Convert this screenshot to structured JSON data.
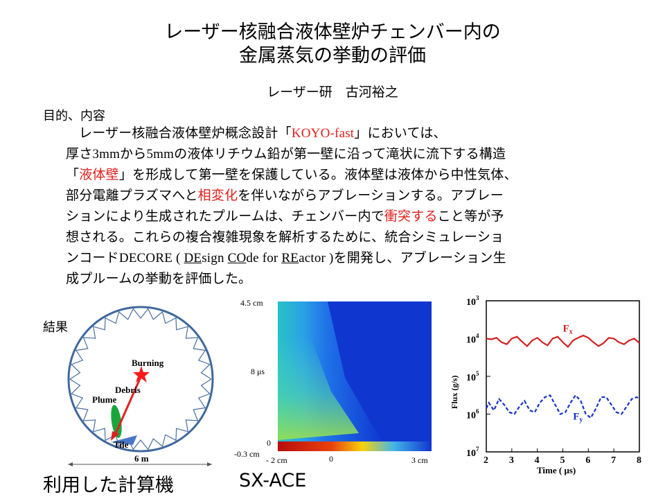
{
  "title": {
    "line1": "レーザー核融合液体壁炉チェンバー内の",
    "line2": "金属蒸気の挙動の評価"
  },
  "author": "レーザー研　古河裕之",
  "purpose": {
    "heading": "目的、内容",
    "lines": [
      [
        "レーザー核融合液体壁炉概念設計「",
        "KOYO-fast",
        "」においては、"
      ],
      [
        "厚さ",
        "3mm",
        "から",
        "5mm",
        "の液体リチウム鉛が第一壁に沿って滝状に流下する構造"
      ],
      [
        "「",
        "液体壁",
        "」を形成して第一壁を保護している。液体壁は液体から中性気体、"
      ],
      [
        "部分電離プラズマへと",
        "相変化",
        "を伴いながらアブレーションする。アブレー"
      ],
      [
        "ションにより生成されたプルームは、チェンバー内で",
        "衝突する",
        "こと等が予"
      ],
      [
        "想される。これらの複合複雑現象を解析するために、統合シミュレーショ"
      ],
      [
        "ンコード",
        "DECORE ( ",
        "DE",
        "sign ",
        "CO",
        "de for ",
        "RE",
        "actor )",
        "を開発し、アブレーション生"
      ],
      [
        "成プルームの挙動を評価した。"
      ]
    ]
  },
  "results": {
    "heading": "結果",
    "computer_label": "利用した計算機",
    "computer_name": "SX-ACE"
  },
  "diagram": {
    "burning": "Burning",
    "debris": "Debris",
    "plume": "Plume",
    "tile": "Tile",
    "width": "6 m"
  },
  "heatmap": {
    "y_top": "4.5 cm",
    "y_time": "8 μs",
    "y_zero": "0",
    "y_bottom": "-0.3 cm",
    "x_left": "- 2 cm",
    "x_zero": "0",
    "x_right": "3 cm"
  },
  "chart_data": {
    "type": "line",
    "xlabel": "Time ( μs)",
    "ylabel": "Flux (g/s)",
    "x_ticks": [
      "2",
      "3",
      "4",
      "5",
      "6",
      "7",
      "8"
    ],
    "y_ticks": [
      {
        "base": "10",
        "exp": "3"
      },
      {
        "base": "10",
        "exp": "4"
      },
      {
        "base": "10",
        "exp": "5"
      },
      {
        "base": "10",
        "exp": "6"
      },
      {
        "base": "10",
        "exp": "7"
      }
    ],
    "xlim": [
      2,
      8
    ],
    "ylim_log10_top_to_bottom": [
      3,
      7
    ],
    "series": [
      {
        "name": "Fx",
        "style": "solid",
        "color": "#d42020",
        "x": [
          2.0,
          2.2,
          2.4,
          2.6,
          2.8,
          3.0,
          3.2,
          3.4,
          3.6,
          3.8,
          4.0,
          4.2,
          4.4,
          4.6,
          4.8,
          5.0,
          5.2,
          5.4,
          5.6,
          5.8,
          6.0,
          6.2,
          6.4,
          6.6,
          6.8,
          7.0,
          7.2,
          7.4,
          7.6,
          7.8,
          8.0
        ],
        "y": [
          4.0,
          4.02,
          3.98,
          4.1,
          4.15,
          4.0,
          3.95,
          4.08,
          4.2,
          4.05,
          3.98,
          4.1,
          4.18,
          4.0,
          3.95,
          4.1,
          4.22,
          4.05,
          3.98,
          3.92,
          3.98,
          4.1,
          4.2,
          4.12,
          3.98,
          4.0,
          4.1,
          4.15,
          4.05,
          4.0,
          4.12
        ]
      },
      {
        "name": "Fy",
        "style": "dashed",
        "color": "#1530c8",
        "x": [
          2.0,
          2.1,
          2.3,
          2.5,
          2.7,
          2.9,
          3.1,
          3.3,
          3.5,
          3.7,
          3.9,
          4.1,
          4.3,
          4.5,
          4.7,
          4.9,
          5.1,
          5.3,
          5.5,
          5.7,
          5.9,
          6.1,
          6.3,
          6.5,
          6.7,
          6.9,
          7.1,
          7.3,
          7.5,
          7.7,
          7.9,
          8.0
        ],
        "y": [
          5.85,
          5.7,
          5.9,
          5.6,
          5.75,
          5.95,
          6.0,
          5.8,
          5.65,
          5.9,
          5.95,
          5.7,
          5.55,
          5.5,
          5.75,
          6.0,
          5.95,
          5.7,
          5.5,
          5.65,
          6.0,
          6.1,
          5.85,
          5.55,
          5.55,
          5.75,
          5.95,
          6.0,
          5.8,
          5.6,
          5.55,
          5.6
        ]
      }
    ]
  }
}
